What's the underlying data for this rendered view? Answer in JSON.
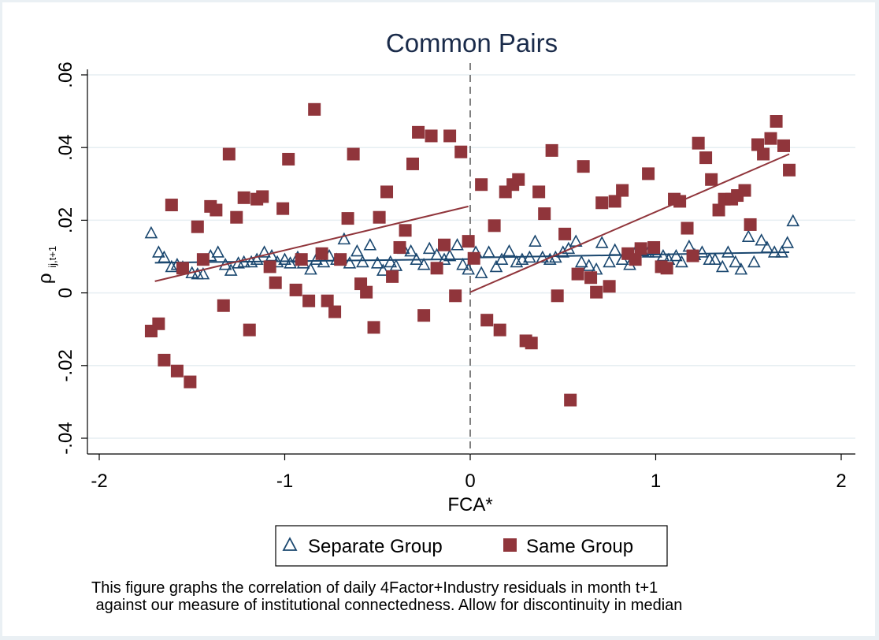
{
  "chart_data": {
    "type": "scatter",
    "title": "Common Pairs",
    "xlabel": "FCA*",
    "ylabel_main": "ρ",
    "ylabel_sub": "ij,t+1",
    "xlim": [
      -2,
      2
    ],
    "ylim": [
      -0.04,
      0.06
    ],
    "x_ticks": [
      -2,
      -1,
      0,
      1,
      2
    ],
    "x_tick_labels": [
      "-2",
      "-1",
      "0",
      "1",
      "2"
    ],
    "y_ticks": [
      -0.04,
      -0.02,
      0,
      0.02,
      0.04,
      0.06
    ],
    "y_tick_labels": [
      "-.04",
      "-.02",
      "0",
      ".02",
      ".04",
      ".06"
    ],
    "grid": "horizontal",
    "discontinuity_x": 0,
    "legend_position": "bottom",
    "series": [
      {
        "name": "Separate Group",
        "marker": "triangle",
        "color": "#1a476f",
        "points": [
          [
            -1.72,
            0.0165
          ],
          [
            -1.68,
            0.0112
          ],
          [
            -1.65,
            0.0098
          ],
          [
            -1.61,
            0.0072
          ],
          [
            -1.58,
            0.0078
          ],
          [
            -1.55,
            0.0071
          ],
          [
            -1.5,
            0.0055
          ],
          [
            -1.47,
            0.0052
          ],
          [
            -1.44,
            0.0052
          ],
          [
            -1.4,
            0.0102
          ],
          [
            -1.36,
            0.0112
          ],
          [
            -1.32,
            0.0078
          ],
          [
            -1.29,
            0.0062
          ],
          [
            -1.25,
            0.0082
          ],
          [
            -1.22,
            0.0085
          ],
          [
            -1.18,
            0.0085
          ],
          [
            -1.15,
            0.0092
          ],
          [
            -1.11,
            0.0112
          ],
          [
            -1.07,
            0.0102
          ],
          [
            -1.04,
            0.0085
          ],
          [
            -1.0,
            0.0092
          ],
          [
            -0.97,
            0.0082
          ],
          [
            -0.93,
            0.0098
          ],
          [
            -0.9,
            0.0082
          ],
          [
            -0.86,
            0.0065
          ],
          [
            -0.83,
            0.0092
          ],
          [
            -0.79,
            0.0085
          ],
          [
            -0.76,
            0.0102
          ],
          [
            -0.72,
            0.0092
          ],
          [
            -0.68,
            0.0148
          ],
          [
            -0.65,
            0.0082
          ],
          [
            -0.61,
            0.0115
          ],
          [
            -0.58,
            0.0085
          ],
          [
            -0.54,
            0.0132
          ],
          [
            -0.5,
            0.0082
          ],
          [
            -0.47,
            0.0062
          ],
          [
            -0.43,
            0.0085
          ],
          [
            -0.4,
            0.0075
          ],
          [
            -0.36,
            0.0122
          ],
          [
            -0.32,
            0.0115
          ],
          [
            -0.29,
            0.0092
          ],
          [
            -0.25,
            0.0078
          ],
          [
            -0.22,
            0.0122
          ],
          [
            -0.18,
            0.0105
          ],
          [
            -0.14,
            0.0092
          ],
          [
            -0.11,
            0.0102
          ],
          [
            -0.07,
            0.0132
          ],
          [
            -0.04,
            0.0078
          ],
          [
            -0.01,
            0.0065
          ],
          [
            0.03,
            0.0112
          ],
          [
            0.06,
            0.0055
          ],
          [
            0.1,
            0.0112
          ],
          [
            0.14,
            0.0072
          ],
          [
            0.17,
            0.0092
          ],
          [
            0.21,
            0.0115
          ],
          [
            0.25,
            0.0085
          ],
          [
            0.28,
            0.0092
          ],
          [
            0.32,
            0.0098
          ],
          [
            0.35,
            0.0142
          ],
          [
            0.39,
            0.0098
          ],
          [
            0.43,
            0.0092
          ],
          [
            0.46,
            0.0098
          ],
          [
            0.5,
            0.0112
          ],
          [
            0.53,
            0.0122
          ],
          [
            0.57,
            0.0142
          ],
          [
            0.6,
            0.0085
          ],
          [
            0.64,
            0.0075
          ],
          [
            0.68,
            0.0065
          ],
          [
            0.71,
            0.0138
          ],
          [
            0.75,
            0.0085
          ],
          [
            0.78,
            0.0118
          ],
          [
            0.82,
            0.0092
          ],
          [
            0.86,
            0.0078
          ],
          [
            0.89,
            0.0112
          ],
          [
            0.93,
            0.0115
          ],
          [
            0.96,
            0.0112
          ],
          [
            1.0,
            0.0112
          ],
          [
            1.04,
            0.0102
          ],
          [
            1.07,
            0.0092
          ],
          [
            1.11,
            0.0102
          ],
          [
            1.14,
            0.0085
          ],
          [
            1.18,
            0.0128
          ],
          [
            1.21,
            0.0105
          ],
          [
            1.25,
            0.0112
          ],
          [
            1.29,
            0.0092
          ],
          [
            1.32,
            0.0092
          ],
          [
            1.36,
            0.0072
          ],
          [
            1.39,
            0.0112
          ],
          [
            1.43,
            0.0085
          ],
          [
            1.46,
            0.0065
          ],
          [
            1.5,
            0.0155
          ],
          [
            1.53,
            0.0085
          ],
          [
            1.57,
            0.0145
          ],
          [
            1.6,
            0.0125
          ],
          [
            1.64,
            0.0112
          ],
          [
            1.68,
            0.0112
          ],
          [
            1.71,
            0.0138
          ],
          [
            1.74,
            0.0198
          ]
        ],
        "fit": [
          {
            "x": [
              -1.7,
              -0.01
            ],
            "y": [
              0.0083,
              0.0093
            ]
          },
          {
            "x": [
              0.0,
              1.72
            ],
            "y": [
              0.0097,
              0.0112
            ]
          }
        ]
      },
      {
        "name": "Same Group",
        "marker": "square",
        "color": "#90353b",
        "points": [
          [
            -1.72,
            -0.0105
          ],
          [
            -1.68,
            -0.0085
          ],
          [
            -1.65,
            -0.0185
          ],
          [
            -1.61,
            0.0242
          ],
          [
            -1.58,
            -0.0215
          ],
          [
            -1.55,
            0.0068
          ],
          [
            -1.51,
            -0.0245
          ],
          [
            -1.47,
            0.0182
          ],
          [
            -1.44,
            0.0092
          ],
          [
            -1.4,
            0.0238
          ],
          [
            -1.37,
            0.0228
          ],
          [
            -1.33,
            -0.0035
          ],
          [
            -1.3,
            0.0382
          ],
          [
            -1.26,
            0.0208
          ],
          [
            -1.22,
            0.0262
          ],
          [
            -1.19,
            -0.0102
          ],
          [
            -1.15,
            0.0258
          ],
          [
            -1.12,
            0.0265
          ],
          [
            -1.08,
            0.0072
          ],
          [
            -1.05,
            0.0028
          ],
          [
            -1.01,
            0.0232
          ],
          [
            -0.98,
            0.0368
          ],
          [
            -0.94,
            0.0008
          ],
          [
            -0.91,
            0.0092
          ],
          [
            -0.87,
            -0.0022
          ],
          [
            -0.84,
            0.0505
          ],
          [
            -0.8,
            0.0108
          ],
          [
            -0.77,
            -0.0022
          ],
          [
            -0.73,
            -0.0052
          ],
          [
            -0.7,
            0.0092
          ],
          [
            -0.66,
            0.0205
          ],
          [
            -0.63,
            0.0382
          ],
          [
            -0.59,
            0.0025
          ],
          [
            -0.56,
            0.0002
          ],
          [
            -0.52,
            -0.0095
          ],
          [
            -0.49,
            0.0208
          ],
          [
            -0.45,
            0.0278
          ],
          [
            -0.42,
            0.0045
          ],
          [
            -0.38,
            0.0125
          ],
          [
            -0.35,
            0.0172
          ],
          [
            -0.31,
            0.0355
          ],
          [
            -0.28,
            0.0442
          ],
          [
            -0.25,
            -0.0062
          ],
          [
            -0.21,
            0.0432
          ],
          [
            -0.18,
            0.0068
          ],
          [
            -0.14,
            0.0132
          ],
          [
            -0.11,
            0.0432
          ],
          [
            -0.08,
            -0.0008
          ],
          [
            -0.05,
            0.0388
          ],
          [
            -0.01,
            0.0142
          ],
          [
            0.02,
            0.0095
          ],
          [
            0.06,
            0.0298
          ],
          [
            0.09,
            -0.0075
          ],
          [
            0.13,
            0.0185
          ],
          [
            0.16,
            -0.0102
          ],
          [
            0.19,
            0.0278
          ],
          [
            0.23,
            0.0298
          ],
          [
            0.26,
            0.0312
          ],
          [
            0.3,
            -0.0132
          ],
          [
            0.33,
            -0.0138
          ],
          [
            0.37,
            0.0278
          ],
          [
            0.4,
            0.0218
          ],
          [
            0.44,
            0.0392
          ],
          [
            0.47,
            -0.0008
          ],
          [
            0.51,
            0.0162
          ],
          [
            0.54,
            -0.0295
          ],
          [
            0.58,
            0.0052
          ],
          [
            0.61,
            0.0348
          ],
          [
            0.65,
            0.0042
          ],
          [
            0.68,
            0.0002
          ],
          [
            0.71,
            0.0248
          ],
          [
            0.75,
            0.0018
          ],
          [
            0.78,
            0.0252
          ],
          [
            0.82,
            0.0282
          ],
          [
            0.85,
            0.0108
          ],
          [
            0.89,
            0.0092
          ],
          [
            0.92,
            0.0122
          ],
          [
            0.96,
            0.0328
          ],
          [
            0.99,
            0.0125
          ],
          [
            1.03,
            0.0072
          ],
          [
            1.06,
            0.0068
          ],
          [
            1.1,
            0.0258
          ],
          [
            1.13,
            0.0252
          ],
          [
            1.17,
            0.0178
          ],
          [
            1.2,
            0.0102
          ],
          [
            1.23,
            0.0412
          ],
          [
            1.27,
            0.0372
          ],
          [
            1.3,
            0.0312
          ],
          [
            1.34,
            0.0228
          ],
          [
            1.37,
            0.0258
          ],
          [
            1.41,
            0.0258
          ],
          [
            1.44,
            0.0268
          ],
          [
            1.48,
            0.0282
          ],
          [
            1.51,
            0.0188
          ],
          [
            1.55,
            0.0408
          ],
          [
            1.58,
            0.0382
          ],
          [
            1.62,
            0.0425
          ],
          [
            1.65,
            0.0472
          ],
          [
            1.69,
            0.0405
          ],
          [
            1.72,
            0.0338
          ]
        ],
        "fit": [
          {
            "x": [
              -1.7,
              -0.01
            ],
            "y": [
              0.0032,
              0.0238
            ]
          },
          {
            "x": [
              0.0,
              1.72
            ],
            "y": [
              0.0002,
              0.0382
            ]
          }
        ]
      }
    ],
    "legend": [
      {
        "label": "Separate Group",
        "marker": "triangle",
        "color": "#1a476f"
      },
      {
        "label": "Same Group",
        "marker": "square",
        "color": "#90353b"
      }
    ]
  },
  "caption": {
    "line1": "This figure graphs the correlation of daily 4Factor+Industry residuals in month t+1",
    "line2": " against our measure of institutional connectedness. Allow for discontinuity in median"
  }
}
